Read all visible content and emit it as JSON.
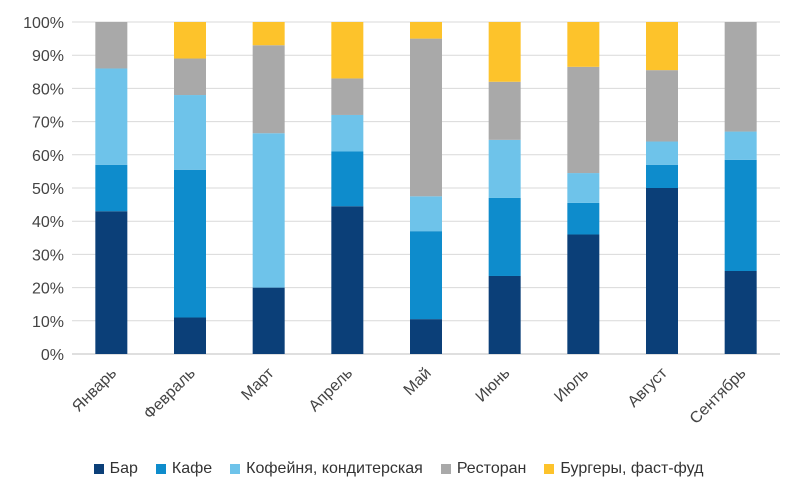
{
  "chart_data": {
    "type": "bar",
    "stacked": true,
    "percent": true,
    "categories": [
      "Январь",
      "Февраль",
      "Март",
      "Апрель",
      "Май",
      "Июнь",
      "Июль",
      "Август",
      "Сентябрь"
    ],
    "series": [
      {
        "name": "Бар",
        "color": "#0b3f78",
        "values": [
          43,
          11,
          20,
          44.5,
          10.5,
          23.5,
          36,
          50,
          25
        ]
      },
      {
        "name": "Кафе",
        "color": "#0e8ccc",
        "values": [
          14,
          44.5,
          0,
          16.5,
          26.5,
          23.5,
          9.5,
          7,
          33.5
        ]
      },
      {
        "name": "Кофейня, кондитерская",
        "color": "#6ec3ea",
        "values": [
          29,
          22.5,
          46.5,
          11,
          10.5,
          17.5,
          9,
          7,
          8.5
        ]
      },
      {
        "name": "Ресторан",
        "color": "#a9a9a9",
        "values": [
          14,
          11,
          26.5,
          11,
          47.5,
          17.5,
          32,
          21.5,
          33
        ]
      },
      {
        "name": "Бургеры, фаст-фуд",
        "color": "#fdc32b",
        "values": [
          0,
          11,
          7,
          17,
          5,
          18,
          13.5,
          14.5,
          0
        ]
      }
    ],
    "y_ticks": [
      "0%",
      "10%",
      "20%",
      "30%",
      "40%",
      "50%",
      "60%",
      "70%",
      "80%",
      "90%",
      "100%"
    ],
    "ylim": [
      0,
      100
    ],
    "grid": true,
    "legend_position": "bottom",
    "title": "",
    "xlabel": "",
    "ylabel": ""
  }
}
